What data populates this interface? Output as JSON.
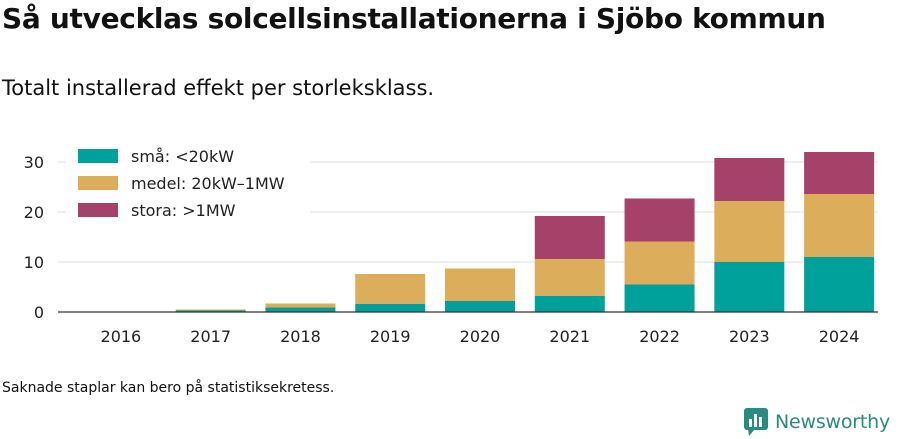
{
  "header": {
    "title": "Så utvecklas solcellsinstallationerna i Sjöbo kommun",
    "subtitle": "Totalt installerad effekt per storleksklass."
  },
  "footer": {
    "note": "Saknade staplar kan bero på statistiksekretess.",
    "brand": "Newsworthy",
    "brand_icon": "newsworthy-logo-icon",
    "brand_color": "#2a8a80"
  },
  "chart_data": {
    "type": "bar",
    "stacked": true,
    "categories": [
      "2016",
      "2017",
      "2018",
      "2019",
      "2020",
      "2021",
      "2022",
      "2023",
      "2024"
    ],
    "series": [
      {
        "name": "små: <20kW",
        "color": "#00a19a",
        "values": [
          0.05,
          0.3,
          0.9,
          1.6,
          2.2,
          3.2,
          5.5,
          10.0,
          11.0
        ]
      },
      {
        "name": "medel: 20kW–1MW",
        "color": "#dcad5a",
        "values": [
          0,
          0.2,
          0.8,
          6.0,
          6.5,
          7.4,
          8.6,
          12.2,
          12.6
        ]
      },
      {
        "name": "stora: >1MW",
        "color": "#a6416a",
        "values": [
          0,
          0,
          0,
          0,
          0,
          8.6,
          8.6,
          8.6,
          8.4
        ]
      }
    ],
    "yticks": [
      0,
      10,
      20,
      30
    ],
    "ylim": [
      0,
      33
    ],
    "grid": true,
    "legend_position": "top-left",
    "xlabel": "",
    "ylabel": ""
  }
}
